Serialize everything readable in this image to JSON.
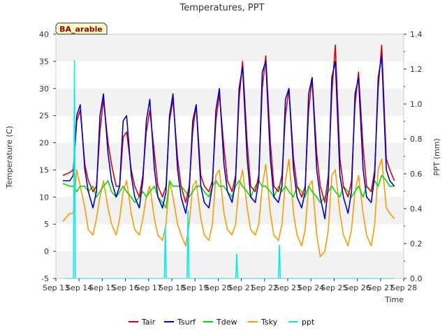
{
  "chart_data": {
    "type": "line",
    "title": "Temperatures, PPT",
    "badge": "BA_arable",
    "xlabel": "Time",
    "ylabel_left": "Temperature (C)",
    "ylabel_right": "PPT (mm)",
    "x_ticks": [
      "Sep 13",
      "Sep 14",
      "Sep 15",
      "Sep 16",
      "Sep 17",
      "Sep 18",
      "Sep 19",
      "Sep 20",
      "Sep 21",
      "Sep 22",
      "Sep 23",
      "Sep 24",
      "Sep 25",
      "Sep 26",
      "Sep 27",
      "Sep 28"
    ],
    "xlim_days": [
      13,
      28
    ],
    "ylim_left": [
      -5,
      40
    ],
    "yticks_left": [
      -5,
      0,
      5,
      10,
      15,
      20,
      25,
      30,
      35,
      40
    ],
    "ylim_right": [
      0.0,
      1.4
    ],
    "yticks_right": [
      "0.0",
      "0.2",
      "0.4",
      "0.6",
      "0.8",
      "1.0",
      "1.2",
      "1.4"
    ],
    "grid_bands": true,
    "legend_position": "bottom",
    "series": [
      {
        "name": "Tair",
        "color": "#dd0000",
        "axis": "left",
        "x": [
          13.3,
          13.6,
          13.75,
          13.9,
          14.05,
          14.25,
          14.4,
          14.6,
          14.75,
          14.9,
          15.05,
          15.25,
          15.4,
          15.6,
          15.75,
          15.9,
          16.05,
          16.25,
          16.4,
          16.6,
          16.75,
          16.9,
          17.05,
          17.25,
          17.4,
          17.6,
          17.75,
          17.9,
          18.05,
          18.25,
          18.4,
          18.6,
          18.75,
          18.9,
          19.05,
          19.25,
          19.4,
          19.6,
          19.75,
          19.9,
          20.05,
          20.25,
          20.4,
          20.6,
          20.75,
          20.9,
          21.05,
          21.25,
          21.4,
          21.6,
          21.75,
          21.9,
          22.05,
          22.25,
          22.4,
          22.6,
          22.75,
          22.9,
          23.05,
          23.25,
          23.4,
          23.6,
          23.75,
          23.9,
          24.05,
          24.25,
          24.4,
          24.6,
          24.75,
          24.9,
          25.05,
          25.25,
          25.4,
          25.6,
          25.75,
          25.9,
          26.05,
          26.25,
          26.4,
          26.6,
          26.75,
          26.9,
          27.05,
          27.25,
          27.4,
          27.6
        ],
        "y": [
          14,
          14.5,
          15,
          24,
          26,
          16,
          13,
          11,
          12,
          22,
          28,
          20,
          16,
          12,
          12,
          21,
          22,
          15,
          12,
          10,
          14,
          22,
          26,
          18,
          12,
          10,
          12,
          24,
          28,
          17,
          12,
          9,
          12,
          22,
          27,
          14,
          12,
          11,
          13,
          24,
          29,
          19,
          13,
          11,
          14,
          28,
          35,
          20,
          12,
          11,
          14,
          30,
          36,
          20,
          12,
          11,
          14,
          25,
          30,
          17,
          12,
          10,
          12,
          26,
          32,
          18,
          12,
          9,
          14,
          29,
          38,
          17,
          12,
          10,
          13,
          27,
          33,
          19,
          12,
          11,
          15,
          30,
          38,
          17,
          15,
          13
        ]
      },
      {
        "name": "Tsurf",
        "color": "#0000cc",
        "axis": "left",
        "x": [
          13.3,
          13.6,
          13.75,
          13.9,
          14.05,
          14.25,
          14.4,
          14.6,
          14.75,
          14.9,
          15.05,
          15.25,
          15.4,
          15.6,
          15.75,
          15.9,
          16.05,
          16.25,
          16.4,
          16.6,
          16.75,
          16.9,
          17.05,
          17.25,
          17.4,
          17.6,
          17.75,
          17.9,
          18.05,
          18.25,
          18.4,
          18.6,
          18.75,
          18.9,
          19.05,
          19.25,
          19.4,
          19.6,
          19.75,
          19.9,
          20.05,
          20.25,
          20.4,
          20.6,
          20.75,
          20.9,
          21.05,
          21.25,
          21.4,
          21.6,
          21.75,
          21.9,
          22.05,
          22.25,
          22.4,
          22.6,
          22.75,
          22.9,
          23.05,
          23.25,
          23.4,
          23.6,
          23.75,
          23.9,
          24.05,
          24.25,
          24.4,
          24.6,
          24.75,
          24.9,
          25.05,
          25.25,
          25.4,
          25.6,
          25.75,
          25.9,
          26.05,
          26.25,
          26.4,
          26.6,
          26.75,
          26.9,
          27.05,
          27.25,
          27.4,
          27.6
        ],
        "y": [
          13,
          13,
          14,
          25,
          27,
          15,
          11,
          8,
          11,
          25,
          29,
          18,
          13,
          10,
          12,
          24,
          25,
          14,
          10,
          8,
          13,
          24,
          28,
          15,
          10,
          8,
          11,
          25,
          29,
          15,
          10,
          7,
          11,
          24,
          27,
          12,
          9,
          8,
          12,
          26,
          30,
          16,
          11,
          9,
          13,
          30,
          34,
          17,
          10,
          9,
          13,
          33,
          35,
          17,
          10,
          9,
          12,
          28,
          30,
          15,
          10,
          8,
          11,
          29,
          32,
          15,
          10,
          6,
          12,
          32,
          35,
          14,
          10,
          7,
          11,
          29,
          32,
          15,
          10,
          9,
          14,
          32,
          36,
          15,
          13,
          12
        ]
      },
      {
        "name": "Tdew",
        "color": "#00dd00",
        "axis": "left",
        "x": [
          13.3,
          13.6,
          13.75,
          13.9,
          14.05,
          14.25,
          14.4,
          14.6,
          14.75,
          14.9,
          15.05,
          15.25,
          15.4,
          15.6,
          15.75,
          15.9,
          16.05,
          16.25,
          16.4,
          16.6,
          16.75,
          16.9,
          17.05,
          17.25,
          17.4,
          17.6,
          17.75,
          17.9,
          18.05,
          18.25,
          18.4,
          18.6,
          18.75,
          18.9,
          19.05,
          19.25,
          19.4,
          19.6,
          19.75,
          19.9,
          20.05,
          20.25,
          20.4,
          20.6,
          20.75,
          20.9,
          21.05,
          21.25,
          21.4,
          21.6,
          21.75,
          21.9,
          22.05,
          22.25,
          22.4,
          22.6,
          22.75,
          22.9,
          23.05,
          23.25,
          23.4,
          23.6,
          23.75,
          23.9,
          24.05,
          24.25,
          24.4,
          24.6,
          24.75,
          24.9,
          25.05,
          25.25,
          25.4,
          25.6,
          25.75,
          25.9,
          26.05,
          26.25,
          26.4,
          26.6,
          26.75,
          26.9,
          27.05,
          27.25,
          27.4,
          27.6
        ],
        "y": [
          12.5,
          12,
          12,
          11,
          12,
          12,
          11,
          12,
          10,
          11,
          12,
          13,
          11,
          10,
          11,
          12,
          11,
          10,
          9,
          10,
          11,
          10,
          11,
          12,
          10,
          9,
          8,
          13,
          12,
          12,
          12,
          11,
          10,
          11,
          12,
          12,
          11,
          10,
          12,
          13,
          12,
          12,
          11,
          10,
          12,
          13,
          12,
          11,
          10,
          12,
          13,
          12,
          12,
          11,
          10,
          12,
          11,
          12,
          11,
          10,
          12,
          11,
          10,
          12,
          11,
          10,
          9,
          10,
          11,
          12,
          11,
          10,
          12,
          11,
          10,
          11,
          12,
          10,
          12,
          11,
          13,
          12,
          14,
          13,
          12,
          12
        ]
      },
      {
        "name": "Tsky",
        "color": "#ff9900",
        "axis": "left",
        "x": [
          13.3,
          13.6,
          13.75,
          13.9,
          14.05,
          14.25,
          14.4,
          14.6,
          14.75,
          14.9,
          15.05,
          15.25,
          15.4,
          15.6,
          15.75,
          15.9,
          16.05,
          16.25,
          16.4,
          16.6,
          16.75,
          16.9,
          17.05,
          17.25,
          17.4,
          17.6,
          17.75,
          17.9,
          18.05,
          18.25,
          18.4,
          18.6,
          18.75,
          18.9,
          19.05,
          19.25,
          19.4,
          19.6,
          19.75,
          19.9,
          20.05,
          20.25,
          20.4,
          20.6,
          20.75,
          20.9,
          21.05,
          21.25,
          21.4,
          21.6,
          21.75,
          21.9,
          22.05,
          22.25,
          22.4,
          22.6,
          22.75,
          22.9,
          23.05,
          23.25,
          23.4,
          23.6,
          23.75,
          23.9,
          24.05,
          24.25,
          24.4,
          24.6,
          24.75,
          24.9,
          25.05,
          25.25,
          25.4,
          25.6,
          25.75,
          25.9,
          26.05,
          26.25,
          26.4,
          26.6,
          26.75,
          26.9,
          27.05,
          27.25,
          27.4,
          27.6
        ],
        "y": [
          5.5,
          7,
          7,
          15,
          12,
          8,
          4,
          3,
          6,
          10,
          13,
          8,
          5,
          3,
          6,
          11,
          13,
          7,
          4,
          3,
          6,
          10,
          12,
          6,
          3,
          2,
          5,
          13,
          10,
          5,
          3,
          1,
          5,
          12,
          13,
          6,
          3,
          2,
          5,
          14,
          15,
          7,
          4,
          3,
          5,
          12,
          15,
          8,
          4,
          3,
          5,
          12,
          16,
          7,
          3,
          2,
          5,
          13,
          17,
          7,
          3,
          1,
          4,
          12,
          13,
          3,
          -1,
          0,
          4,
          14,
          15,
          7,
          3,
          1,
          4,
          11,
          14,
          7,
          3,
          1,
          5,
          15,
          17,
          8,
          7,
          6
        ]
      },
      {
        "name": "ppt",
        "color": "#00eeee",
        "axis": "right",
        "x": [
          13.35,
          13.76,
          13.8,
          13.84,
          17.68,
          17.72,
          17.76,
          18.66,
          18.7,
          18.74,
          20.76,
          20.8,
          20.84,
          22.6,
          22.64,
          22.68,
          27.6
        ],
        "y": [
          0,
          0,
          1.25,
          0,
          0,
          0.3,
          0,
          0,
          0.39,
          0,
          0,
          0.14,
          0,
          0,
          0.19,
          0,
          0
        ]
      }
    ]
  }
}
